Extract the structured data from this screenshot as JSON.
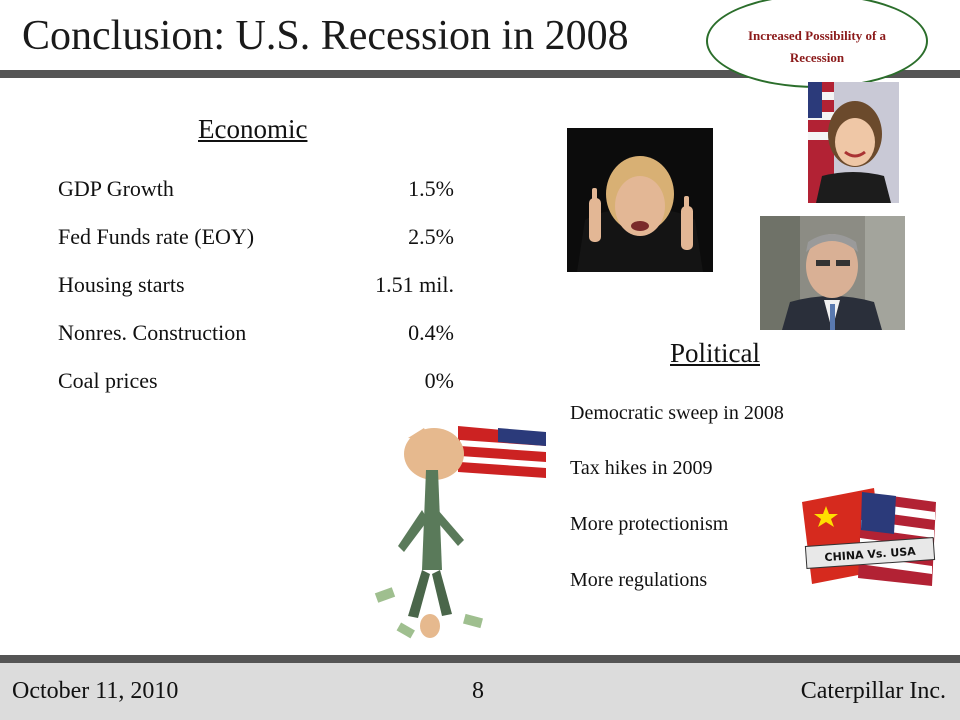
{
  "slide": {
    "title": "Conclusion:  U.S. Recession in 2008",
    "callout": "Increased Possibility of a Recession"
  },
  "economic": {
    "heading": "Economic",
    "rows": [
      {
        "label": "GDP Growth",
        "value": "1.5%"
      },
      {
        "label": "Fed Funds rate (EOY)",
        "value": "2.5%"
      },
      {
        "label": "Housing starts",
        "value": "1.51 mil."
      },
      {
        "label": "Nonres. Construction",
        "value": "0.4%"
      },
      {
        "label": "Coal prices",
        "value": "0%"
      }
    ]
  },
  "political": {
    "heading": "Political",
    "items": [
      "Democratic sweep in 2008",
      "Tax hikes in 2009",
      "More protectionism",
      "More regulations"
    ]
  },
  "images": {
    "flag_badge_text": "CHINA Vs. USA"
  },
  "footer": {
    "date": "October 11, 2010",
    "page": "8",
    "company": "Caterpillar Inc."
  },
  "colors": {
    "rule": "#555555",
    "footer_band": "#dcdcdc",
    "callout_border": "#2b6e2b",
    "callout_text": "#8b1a1a"
  }
}
